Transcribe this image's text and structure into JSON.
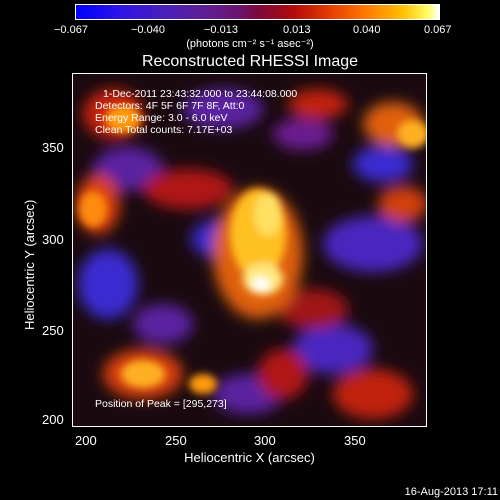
{
  "colorbar": {
    "ticks": [
      "−0.067",
      "−0.040",
      "−0.013",
      "0.013",
      "0.040",
      "0.067"
    ],
    "units": "(photons cm⁻² s⁻¹ asec⁻²)"
  },
  "title": "Reconstructed RHESSI Image",
  "info": {
    "line1": "1-Dec-2011 23:43:32.000 to 23:44:08.000",
    "line2": "Detectors: 4F 5F 6F 7F 8F, Att:0",
    "line3": "Energy Range: 3.0 - 6.0 keV",
    "line4": "Clean     Total counts: 7.17E+03",
    "peak": "Position of Peak = [295,273]"
  },
  "axes": {
    "xlabel": "Heliocentric X (arcsec)",
    "ylabel": "Heliocentric Y (arcsec)",
    "xticks": [
      "200",
      "250",
      "300",
      "350"
    ],
    "yticks": [
      "350",
      "300",
      "250",
      "200"
    ]
  },
  "timestamp": "16-Aug-2013 17:11",
  "colors": {
    "background": "#000000",
    "frame": "#ffffff"
  }
}
